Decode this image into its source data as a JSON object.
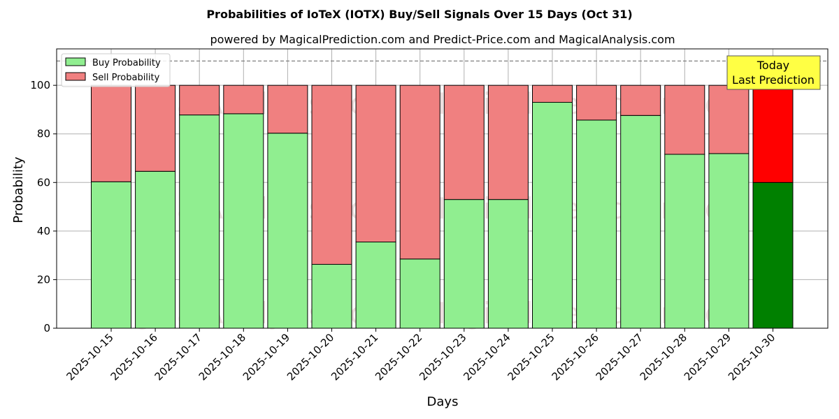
{
  "chart_data": {
    "type": "bar",
    "stacked": true,
    "title": "Probabilities of IoTeX (IOTX) Buy/Sell Signals Over 15 Days (Oct 31)",
    "subtitle": "powered by MagicalPrediction.com and Predict-Price.com and MagicalAnalysis.com",
    "xlabel": "Days",
    "ylabel": "Probability",
    "ylim": [
      0,
      115
    ],
    "yticks": [
      0,
      20,
      40,
      60,
      80,
      100
    ],
    "reference_line": 110,
    "grid": true,
    "legend_position": "top-left",
    "categories": [
      "2025-10-15",
      "2025-10-16",
      "2025-10-17",
      "2025-10-18",
      "2025-10-19",
      "2025-10-20",
      "2025-10-21",
      "2025-10-22",
      "2025-10-23",
      "2025-10-24",
      "2025-10-25",
      "2025-10-26",
      "2025-10-27",
      "2025-10-28",
      "2025-10-29",
      "2025-10-30"
    ],
    "series": [
      {
        "name": "Buy Probability",
        "color": "#90ee90",
        "values": [
          60.3,
          64.6,
          87.8,
          88.3,
          80.3,
          26.3,
          35.5,
          28.5,
          53.0,
          53.0,
          93.0,
          85.7,
          87.6,
          71.6,
          71.9,
          60.0
        ]
      },
      {
        "name": "Sell Probability",
        "color": "#f08080",
        "values": [
          39.7,
          35.4,
          12.2,
          11.7,
          19.7,
          73.7,
          64.5,
          71.5,
          47.0,
          47.0,
          7.0,
          14.3,
          12.4,
          28.4,
          28.1,
          40.0
        ]
      }
    ],
    "highlight": {
      "index": 15,
      "buy_color": "#008000",
      "sell_color": "#ff0000"
    },
    "annotation": {
      "line1": "Today",
      "line2": "Last Prediction",
      "color": "#ffff44"
    },
    "watermarks": [
      "MagicalAnalysis.com",
      "MagicalPrediction.com"
    ]
  }
}
